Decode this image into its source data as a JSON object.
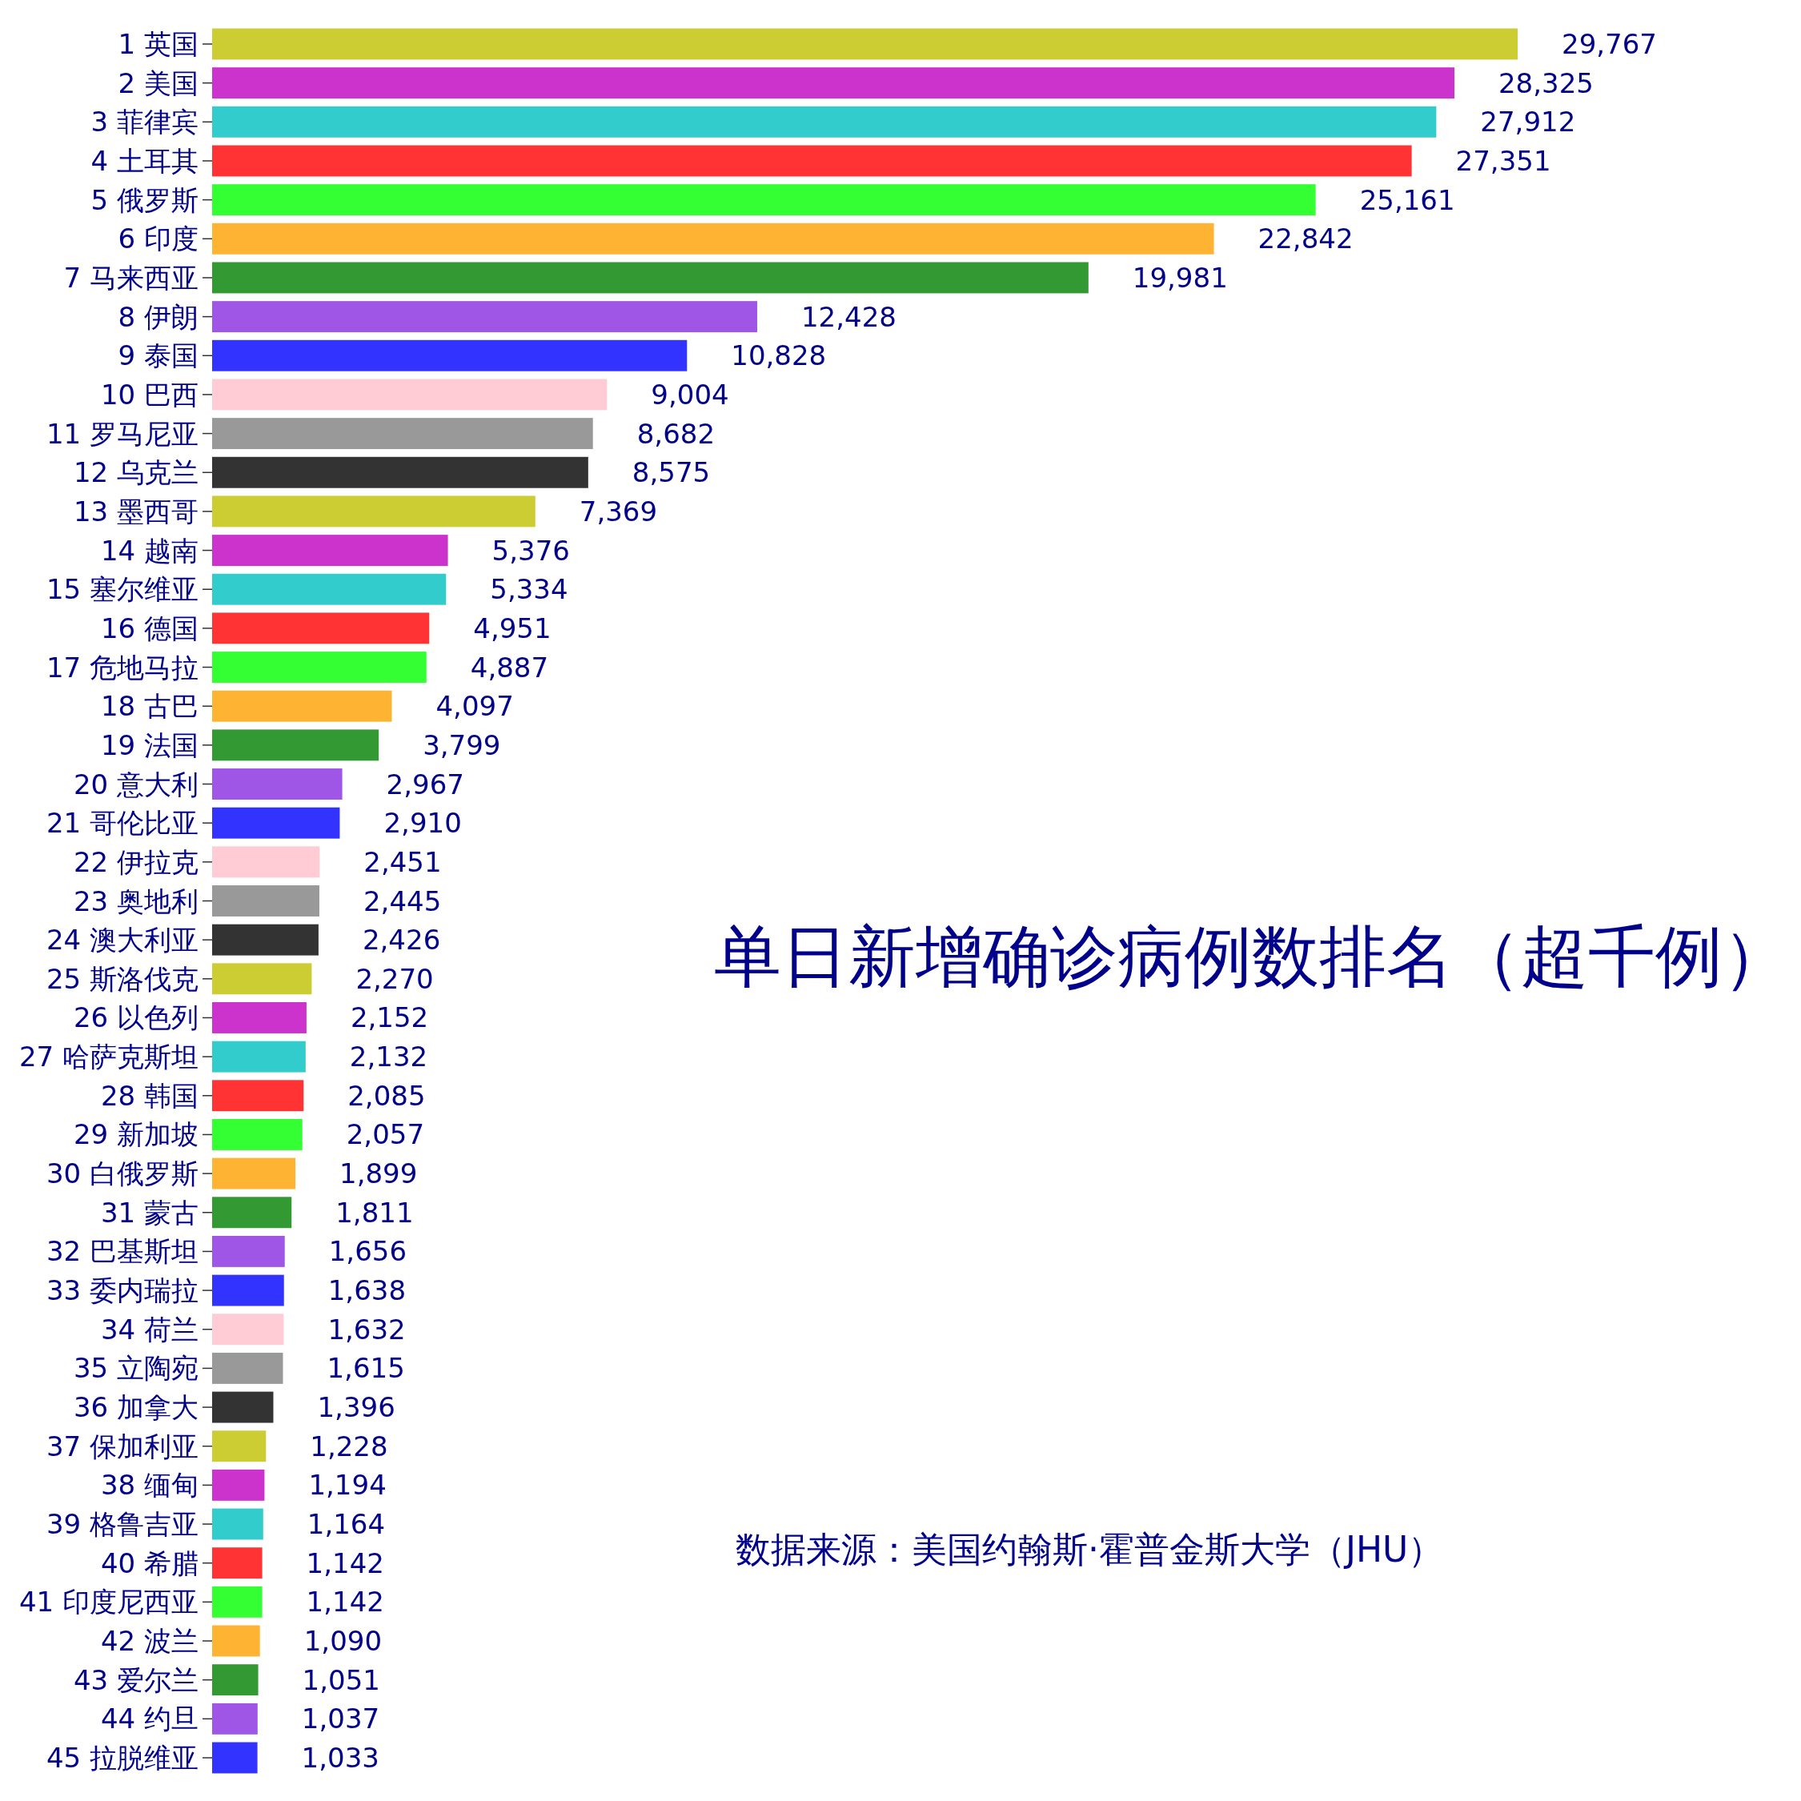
{
  "chart_data": {
    "type": "bar",
    "orientation": "horizontal",
    "title": "单日新增确诊病例数排名（超千例）",
    "annotations": [
      "数据来源：美国约翰斯·霍普金斯大学（JHU）"
    ],
    "categories": [
      "1 英国",
      "2 美国",
      "3 菲律宾",
      "4 土耳其",
      "5 俄罗斯",
      "6 印度",
      "7 马来西亚",
      "8 伊朗",
      "9 泰国",
      "10 巴西",
      "11 罗马尼亚",
      "12 乌克兰",
      "13 墨西哥",
      "14 越南",
      "15 塞尔维亚",
      "16 德国",
      "17 危地马拉",
      "18 古巴",
      "19 法国",
      "20 意大利",
      "21 哥伦比亚",
      "22 伊拉克",
      "23 奥地利",
      "24 澳大利亚",
      "25 斯洛伐克",
      "26 以色列",
      "27 哈萨克斯坦",
      "28 韩国",
      "29 新加坡",
      "30 白俄罗斯",
      "31 蒙古",
      "32 巴基斯坦",
      "33 委内瑞拉",
      "34 荷兰",
      "35 立陶宛",
      "36 加拿大",
      "37 保加利亚",
      "38 缅甸",
      "39 格鲁吉亚",
      "40 希腊",
      "41 印度尼西亚",
      "42 波兰",
      "43 爱尔兰",
      "44 约旦",
      "45 拉脱维亚"
    ],
    "values": [
      29767,
      28325,
      27912,
      27351,
      25161,
      22842,
      19981,
      12428,
      10828,
      9004,
      8682,
      8575,
      7369,
      5376,
      5334,
      4951,
      4887,
      4097,
      3799,
      2967,
      2910,
      2451,
      2445,
      2426,
      2270,
      2152,
      2132,
      2085,
      2057,
      1899,
      1811,
      1656,
      1638,
      1632,
      1615,
      1396,
      1228,
      1194,
      1164,
      1142,
      1142,
      1090,
      1051,
      1037,
      1033
    ],
    "value_labels": [
      "29,767",
      "28,325",
      "27,912",
      "27,351",
      "25,161",
      "22,842",
      "19,981",
      "12,428",
      "10,828",
      "9,004",
      "8,682",
      "8,575",
      "7,369",
      "5,376",
      "5,334",
      "4,951",
      "4,887",
      "4,097",
      "3,799",
      "2,967",
      "2,910",
      "2,451",
      "2,445",
      "2,426",
      "2,270",
      "2,152",
      "2,132",
      "2,085",
      "2,057",
      "1,899",
      "1,811",
      "1,656",
      "1,638",
      "1,632",
      "1,615",
      "1,396",
      "1,228",
      "1,194",
      "1,164",
      "1,142",
      "1,142",
      "1,090",
      "1,051",
      "1,037",
      "1,033"
    ],
    "colors": [
      "#cccc33",
      "#cc33cc",
      "#33cccc",
      "#ff3333",
      "#33ff33",
      "#ffb333",
      "#339933",
      "#9f55e6",
      "#3333ff",
      "#ffccd5",
      "#999999",
      "#333333",
      "#cccc33",
      "#cc33cc",
      "#33cccc",
      "#ff3333",
      "#33ff33",
      "#ffb333",
      "#339933",
      "#9f55e6",
      "#3333ff",
      "#ffccd5",
      "#999999",
      "#333333",
      "#cccc33",
      "#cc33cc",
      "#33cccc",
      "#ff3333",
      "#33ff33",
      "#ffb333",
      "#339933",
      "#9f55e6",
      "#3333ff",
      "#ffccd5",
      "#999999",
      "#333333",
      "#cccc33",
      "#cc33cc",
      "#33cccc",
      "#ff3333",
      "#33ff33",
      "#ffb333",
      "#339933",
      "#9f55e6",
      "#3333ff"
    ]
  }
}
